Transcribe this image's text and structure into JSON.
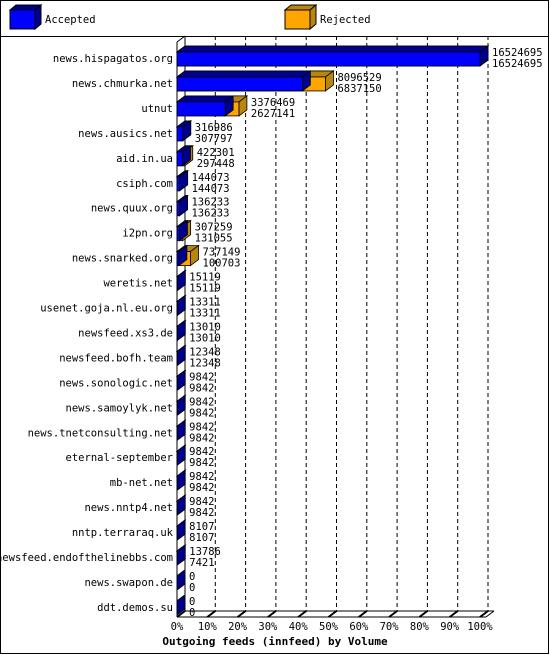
{
  "chart_data": {
    "type": "bar3d",
    "orientation": "horizontal",
    "title": "Outgoing feeds (innfeed) by Volume",
    "categories": [
      "news.hispagatos.org",
      "news.chmurka.net",
      "utnut",
      "news.ausics.net",
      "aid.in.ua",
      "csiph.com",
      "news.quux.org",
      "i2pn.org",
      "news.snarked.org",
      "weretis.net",
      "usenet.goja.nl.eu.org",
      "newsfeed.xs3.de",
      "newsfeed.bofh.team",
      "news.sonologic.net",
      "news.samoylyk.net",
      "news.tnetconsulting.net",
      "eternal-september",
      "mb-net.net",
      "news.nntp4.net",
      "nntp.terraraq.uk",
      "newsfeed.endofthelinebbs.com",
      "news.swapon.de",
      "ddt.demos.su"
    ],
    "series": [
      {
        "name": "Accepted",
        "color": "#0000ff",
        "values": [
          16524695,
          6837150,
          2627141,
          307797,
          297448,
          144073,
          136233,
          131055,
          100703,
          15119,
          13311,
          13010,
          12348,
          9842,
          9842,
          9842,
          9842,
          9842,
          9842,
          8107,
          7421,
          0,
          0
        ]
      },
      {
        "name": "Rejected",
        "color": "#ffa500",
        "values": [
          16524695,
          8096529,
          3376469,
          316986,
          422301,
          144073,
          136233,
          307259,
          737149,
          15119,
          13311,
          13010,
          12348,
          9842,
          9842,
          9842,
          9842,
          9842,
          9842,
          8107,
          13786,
          0,
          0
        ]
      }
    ],
    "xlim": [
      0,
      16524695
    ],
    "xticks": [
      {
        "value": 0,
        "label": "0%"
      },
      {
        "value": 1652469.5,
        "label": "10%"
      },
      {
        "value": 3304939,
        "label": "20%"
      },
      {
        "value": 4957408.5,
        "label": "30%"
      },
      {
        "value": 6609878,
        "label": "40%"
      },
      {
        "value": 8262347.5,
        "label": "50%"
      },
      {
        "value": 9914817,
        "label": "60%"
      },
      {
        "value": 11567286.5,
        "label": "70%"
      },
      {
        "value": 13219756,
        "label": "80%"
      },
      {
        "value": 14872225.5,
        "label": "90%"
      },
      {
        "value": 16524695,
        "label": "100%"
      }
    ],
    "grid": true
  }
}
